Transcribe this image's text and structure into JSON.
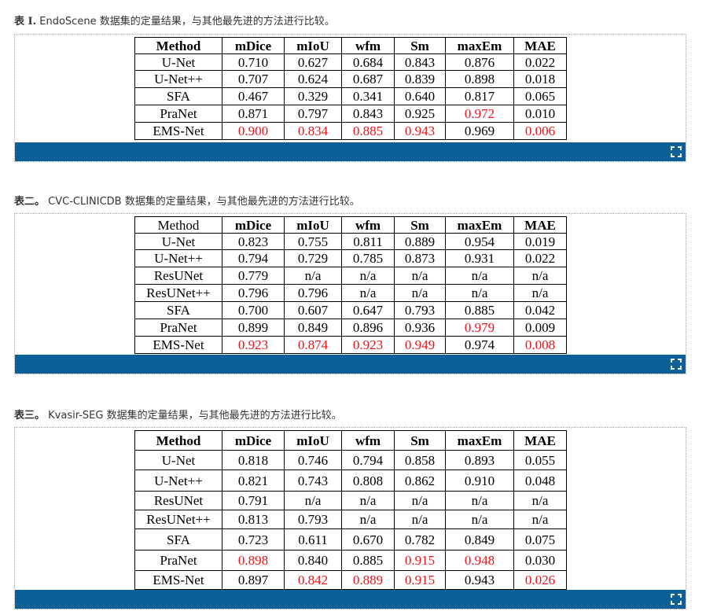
{
  "captions": [
    {
      "prefix": "表 I.",
      "text": " EndoScene 数据集的定量结果，与其他最先进的方法进行比较。"
    },
    {
      "prefix": "表二。",
      "text": " CVC-CLINICDB 数据集的定量结果，与其他最先进的方法进行比较。"
    },
    {
      "prefix": "表三。",
      "text": " Kvasir-SEG 数据集的定量结果，与其他最先进的方法进行比较。"
    }
  ],
  "tables": [
    {
      "headers": [
        "Method",
        "mDice",
        "mIoU",
        "wfm",
        "Sm",
        "maxEm",
        "MAE"
      ],
      "rows": [
        [
          "U-Net",
          "0.710",
          "0.627",
          "0.684",
          "0.843",
          "0.876",
          "0.022"
        ],
        [
          "U-Net++",
          "0.707",
          "0.624",
          "0.687",
          "0.839",
          "0.898",
          "0.018"
        ],
        [
          "SFA",
          "0.467",
          "0.329",
          "0.341",
          "0.640",
          "0.817",
          "0.065"
        ],
        [
          "PraNet",
          "0.871",
          "0.797",
          "0.843",
          "0.925",
          "0.972",
          "0.010"
        ],
        [
          "EMS-Net",
          "0.900",
          "0.834",
          "0.885",
          "0.943",
          "0.969",
          "0.006"
        ]
      ],
      "highlighted": [
        [
          3,
          5
        ],
        [
          4,
          1
        ],
        [
          4,
          2
        ],
        [
          4,
          3
        ],
        [
          4,
          4
        ],
        [
          4,
          6
        ]
      ]
    },
    {
      "headers": [
        "Method",
        "mDice",
        "mIoU",
        "wfm",
        "Sm",
        "maxEm",
        "MAE"
      ],
      "rows": [
        [
          "U-Net",
          "0.823",
          "0.755",
          "0.811",
          "0.889",
          "0.954",
          "0.019"
        ],
        [
          "U-Net++",
          "0.794",
          "0.729",
          "0.785",
          "0.873",
          "0.931",
          "0.022"
        ],
        [
          "ResUNet",
          "0.779",
          "n/a",
          "n/a",
          "n/a",
          "n/a",
          "n/a"
        ],
        [
          "ResUNet++",
          "0.796",
          "0.796",
          "n/a",
          "n/a",
          "n/a",
          "n/a"
        ],
        [
          "SFA",
          "0.700",
          "0.607",
          "0.647",
          "0.793",
          "0.885",
          "0.042"
        ],
        [
          "PraNet",
          "0.899",
          "0.849",
          "0.896",
          "0.936",
          "0.979",
          "0.009"
        ],
        [
          "EMS-Net",
          "0.923",
          "0.874",
          "0.923",
          "0.949",
          "0.974",
          "0.008"
        ]
      ],
      "highlighted": [
        [
          5,
          5
        ],
        [
          6,
          1
        ],
        [
          6,
          2
        ],
        [
          6,
          3
        ],
        [
          6,
          4
        ],
        [
          6,
          6
        ]
      ]
    },
    {
      "headers": [
        "Method",
        "mDice",
        "mIoU",
        "wfm",
        "Sm",
        "maxEm",
        "MAE"
      ],
      "rows": [
        [
          "U-Net",
          "0.818",
          "0.746",
          "0.794",
          "0.858",
          "0.893",
          "0.055"
        ],
        [
          "U-Net++",
          "0.821",
          "0.743",
          "0.808",
          "0.862",
          "0.910",
          "0.048"
        ],
        [
          "ResUNet",
          "0.791",
          "n/a",
          "n/a",
          "n/a",
          "n/a",
          "n/a"
        ],
        [
          "ResUNet++",
          "0.813",
          "0.793",
          "n/a",
          "n/a",
          "n/a",
          "n/a"
        ],
        [
          "SFA",
          "0.723",
          "0.611",
          "0.670",
          "0.782",
          "0.849",
          "0.075"
        ],
        [
          "PraNet",
          "0.898",
          "0.840",
          "0.885",
          "0.915",
          "0.948",
          "0.030"
        ],
        [
          "EMS-Net",
          "0.897",
          "0.842",
          "0.889",
          "0.915",
          "0.943",
          "0.026"
        ]
      ],
      "highlighted": [
        [
          5,
          1
        ],
        [
          5,
          4
        ],
        [
          5,
          5
        ],
        [
          6,
          2
        ],
        [
          6,
          3
        ],
        [
          6,
          4
        ],
        [
          6,
          6
        ]
      ]
    }
  ],
  "colors": {
    "highlight": "#e8141b",
    "bar": "#0b6197"
  },
  "icons": {
    "expand": "expand-icon"
  }
}
